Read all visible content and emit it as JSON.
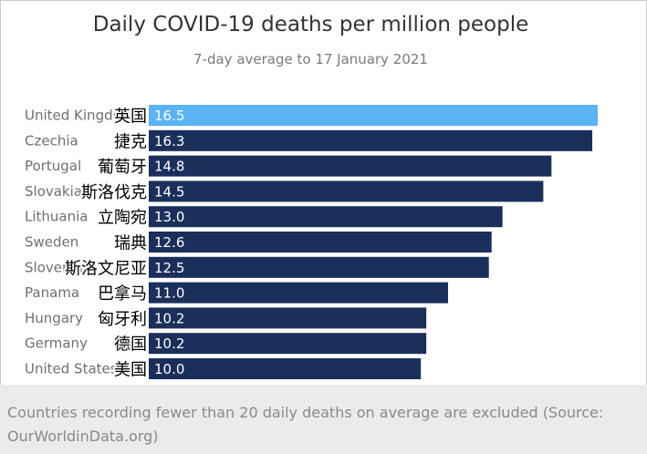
{
  "header": {
    "title": "Daily COVID-19 deaths per million people",
    "subtitle": "7-day average to 17 January 2021"
  },
  "chart_data": {
    "type": "bar",
    "orientation": "horizontal",
    "title": "Daily COVID-19 deaths per million people",
    "subtitle": "7-day average to 17 January 2021",
    "xlabel": "",
    "ylabel": "",
    "xlim": [
      0,
      16.5
    ],
    "grid": false,
    "categories": [
      "United Kingdom",
      "Czechia",
      "Portugal",
      "Slovakia",
      "Lithuania",
      "Sweden",
      "Slovenia",
      "Panama",
      "Hungary",
      "Germany",
      "United States"
    ],
    "display_labels": [
      "United Kingdom",
      "Czechia",
      "Portugal",
      "Slovakia",
      "Lithuania",
      "Sweden",
      "Slovenia",
      "Panama",
      "Hungary",
      "Germany",
      "United States"
    ],
    "overlay_labels": [
      "英国",
      "捷克",
      "葡萄牙",
      "斯洛伐克",
      "立陶宛",
      "瑞典",
      "斯洛文尼亚",
      "巴拿马",
      "匈牙利",
      "德国",
      "美国"
    ],
    "values": [
      16.5,
      16.3,
      14.8,
      14.5,
      13.0,
      12.6,
      12.5,
      11.0,
      10.2,
      10.2,
      10.0
    ],
    "value_labels": [
      "16.5",
      "16.3",
      "14.8",
      "14.5",
      "13.0",
      "12.6",
      "12.5",
      "11.0",
      "10.2",
      "10.2",
      "10.0"
    ],
    "highlight_index": 0,
    "colors": {
      "highlight": "#5ab3f4",
      "bar": "#1b2f5b",
      "label": "#6e6e6e",
      "overlay": "#000000",
      "value_on_dark": "#ffffff",
      "value_on_light": "#ffffff"
    }
  },
  "footer": {
    "note_line1": "Countries recording fewer than 20 daily deaths on average are excluded (Source:",
    "note_line2": "OurWorldinData.org)"
  }
}
